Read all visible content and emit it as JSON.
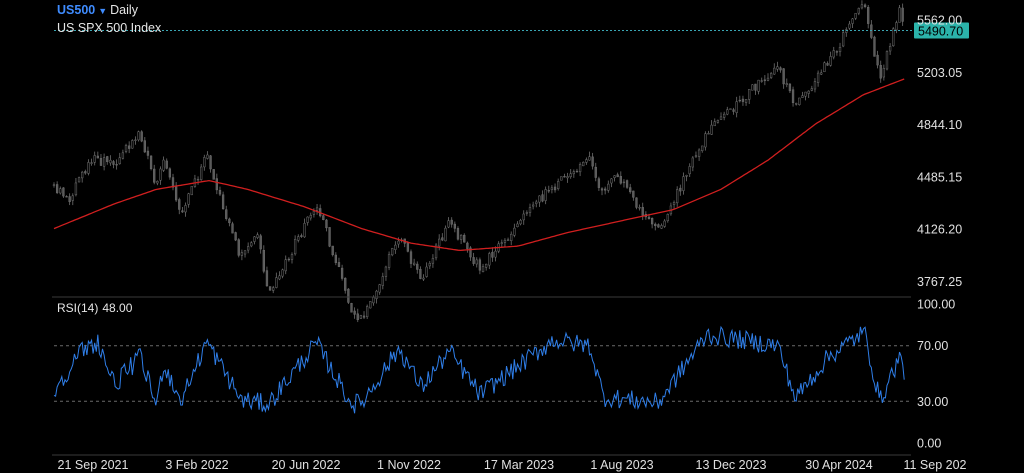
{
  "header": {
    "symbol": "US500",
    "timeframe": "Daily",
    "instrument_name": "US SPX 500 Index"
  },
  "rsi_panel": {
    "label": "RSI(14)",
    "value": "48.00"
  },
  "colors": {
    "background": "#000000",
    "candle_stroke": "#6f6f6f",
    "moving_average": "#d11f1f",
    "rsi_line": "#2f7ee8",
    "price_tag": "#2bb3aa",
    "price_line": "#3aa6b3",
    "axis_text": "#e0e0e0",
    "grid_dash": "#6a6a6a",
    "symbol": "#3f8cff"
  },
  "chart_data": [
    {
      "type": "line",
      "title": "US SPX 500 Index",
      "y_ticks": [
        "5562.00",
        "5203.05",
        "4844.10",
        "4485.15",
        "4126.20",
        "3767.25"
      ],
      "ylim": [
        3660,
        5680
      ],
      "current_price": "5490.70",
      "x_ticks": [
        "21 Sep 2021",
        "3 Feb 2022",
        "20 Jun 2022",
        "1 Nov 2022",
        "17 Mar 2023",
        "1 Aug 2023",
        "13 Dec 2023",
        "30 Apr 2024",
        "11 Sep 202"
      ],
      "series": [
        {
          "style": "candles",
          "approx_close_path": [
            {
              "x": "2021-09-15",
              "y": 4400
            },
            {
              "x": "2021-10-04",
              "y": 4330
            },
            {
              "x": "2021-11-01",
              "y": 4610
            },
            {
              "x": "2021-12-01",
              "y": 4570
            },
            {
              "x": "2022-01-03",
              "y": 4790
            },
            {
              "x": "2022-01-24",
              "y": 4400
            },
            {
              "x": "2022-02-02",
              "y": 4590
            },
            {
              "x": "2022-02-24",
              "y": 4220
            },
            {
              "x": "2022-03-29",
              "y": 4630
            },
            {
              "x": "2022-05-12",
              "y": 3930
            },
            {
              "x": "2022-06-01",
              "y": 4110
            },
            {
              "x": "2022-06-16",
              "y": 3660
            },
            {
              "x": "2022-08-16",
              "y": 4310
            },
            {
              "x": "2022-09-30",
              "y": 3590
            },
            {
              "x": "2022-10-13",
              "y": 3500
            },
            {
              "x": "2022-11-30",
              "y": 4080
            },
            {
              "x": "2022-12-28",
              "y": 3790
            },
            {
              "x": "2023-02-02",
              "y": 4180
            },
            {
              "x": "2023-03-13",
              "y": 3850
            },
            {
              "x": "2023-05-01",
              "y": 4170
            },
            {
              "x": "2023-06-15",
              "y": 4420
            },
            {
              "x": "2023-07-31",
              "y": 4590
            },
            {
              "x": "2023-08-18",
              "y": 4370
            },
            {
              "x": "2023-09-01",
              "y": 4510
            },
            {
              "x": "2023-10-27",
              "y": 4110
            },
            {
              "x": "2023-12-28",
              "y": 4790
            },
            {
              "x": "2024-03-28",
              "y": 5250
            },
            {
              "x": "2024-04-19",
              "y": 4960
            },
            {
              "x": "2024-05-31",
              "y": 5280
            },
            {
              "x": "2024-07-16",
              "y": 5670
            },
            {
              "x": "2024-08-05",
              "y": 5160
            },
            {
              "x": "2024-08-30",
              "y": 5650
            },
            {
              "x": "2024-09-06",
              "y": 5490.7
            }
          ]
        },
        {
          "style": "moving_average",
          "points": [
            {
              "x": "2021-09-15",
              "y": 4130
            },
            {
              "x": "2021-12-01",
              "y": 4300
            },
            {
              "x": "2022-01-24",
              "y": 4400
            },
            {
              "x": "2022-04-01",
              "y": 4460
            },
            {
              "x": "2022-05-20",
              "y": 4400
            },
            {
              "x": "2022-08-01",
              "y": 4280
            },
            {
              "x": "2022-10-13",
              "y": 4130
            },
            {
              "x": "2022-12-15",
              "y": 4030
            },
            {
              "x": "2023-02-15",
              "y": 3980
            },
            {
              "x": "2023-05-01",
              "y": 4010
            },
            {
              "x": "2023-07-01",
              "y": 4100
            },
            {
              "x": "2023-09-15",
              "y": 4190
            },
            {
              "x": "2023-11-15",
              "y": 4260
            },
            {
              "x": "2024-01-15",
              "y": 4400
            },
            {
              "x": "2024-03-15",
              "y": 4600
            },
            {
              "x": "2024-05-15",
              "y": 4850
            },
            {
              "x": "2024-07-15",
              "y": 5050
            },
            {
              "x": "2024-09-06",
              "y": 5160
            }
          ]
        }
      ]
    },
    {
      "type": "line",
      "title": "RSI(14)",
      "y_ticks": [
        "100.00",
        "70.00",
        "30.00",
        "0.00"
      ],
      "ylim": [
        0,
        100
      ],
      "levels": [
        70,
        30
      ],
      "series": [
        {
          "name": "RSI(14)",
          "approx_path": [
            {
              "x": "2021-09-15",
              "y": 38
            },
            {
              "x": "2021-10-20",
              "y": 66
            },
            {
              "x": "2021-11-10",
              "y": 73
            },
            {
              "x": "2021-12-01",
              "y": 42
            },
            {
              "x": "2022-01-03",
              "y": 62
            },
            {
              "x": "2022-01-24",
              "y": 27
            },
            {
              "x": "2022-02-02",
              "y": 57
            },
            {
              "x": "2022-02-24",
              "y": 30
            },
            {
              "x": "2022-03-29",
              "y": 73
            },
            {
              "x": "2022-05-12",
              "y": 31
            },
            {
              "x": "2022-06-16",
              "y": 28
            },
            {
              "x": "2022-08-16",
              "y": 72
            },
            {
              "x": "2022-09-30",
              "y": 28
            },
            {
              "x": "2022-10-13",
              "y": 29
            },
            {
              "x": "2022-11-30",
              "y": 68
            },
            {
              "x": "2022-12-28",
              "y": 40
            },
            {
              "x": "2023-02-02",
              "y": 66
            },
            {
              "x": "2023-03-13",
              "y": 35
            },
            {
              "x": "2023-06-15",
              "y": 74
            },
            {
              "x": "2023-07-31",
              "y": 70
            },
            {
              "x": "2023-08-18",
              "y": 33
            },
            {
              "x": "2023-10-27",
              "y": 29
            },
            {
              "x": "2023-12-28",
              "y": 78
            },
            {
              "x": "2024-03-28",
              "y": 70
            },
            {
              "x": "2024-04-19",
              "y": 32
            },
            {
              "x": "2024-05-31",
              "y": 62
            },
            {
              "x": "2024-07-16",
              "y": 80
            },
            {
              "x": "2024-08-05",
              "y": 30
            },
            {
              "x": "2024-08-30",
              "y": 62
            },
            {
              "x": "2024-09-06",
              "y": 48
            }
          ]
        }
      ]
    }
  ]
}
